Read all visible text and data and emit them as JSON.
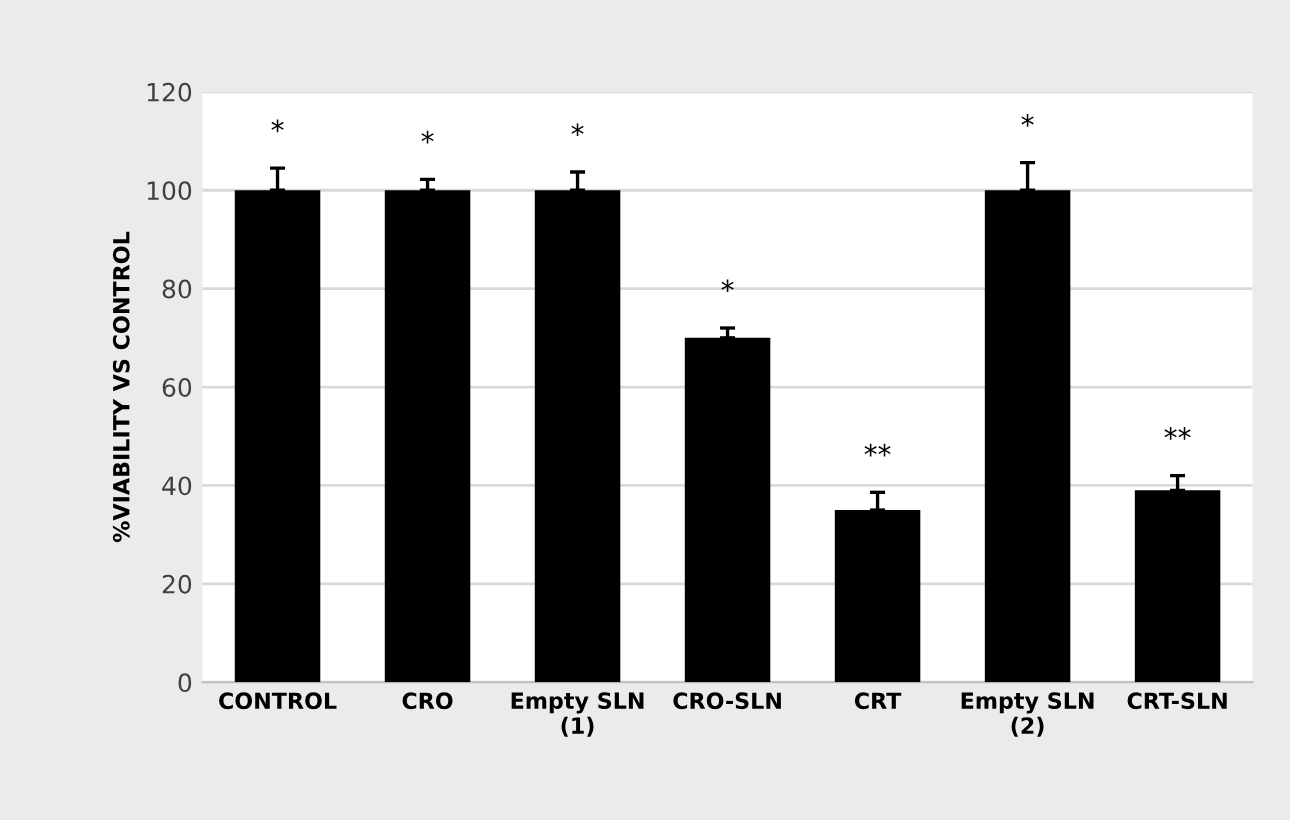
{
  "chart_data": {
    "type": "bar",
    "ylabel": "%VIABILITY VS CONTROL",
    "categories": [
      "CONTROL",
      "CRO",
      "Empty SLN\n(1)",
      "CRO-SLN",
      "CRT",
      "Empty SLN\n(2)",
      "CRT-SLN"
    ],
    "values": [
      100,
      100,
      100,
      70,
      35,
      100,
      39
    ],
    "errors": [
      [
        100,
        104.5
      ],
      [
        100,
        102.2
      ],
      [
        100,
        103.7
      ],
      [
        70,
        72
      ],
      [
        35,
        38.6
      ],
      [
        100,
        105.6
      ],
      [
        39,
        42
      ]
    ],
    "color": "#000000",
    "ylim": [
      0,
      120
    ],
    "yticks": [
      0,
      20,
      40,
      60,
      80,
      100,
      120
    ],
    "grid": "y",
    "annotations": [
      "*",
      "*",
      "*",
      "*",
      "**",
      "*",
      "**"
    ]
  }
}
